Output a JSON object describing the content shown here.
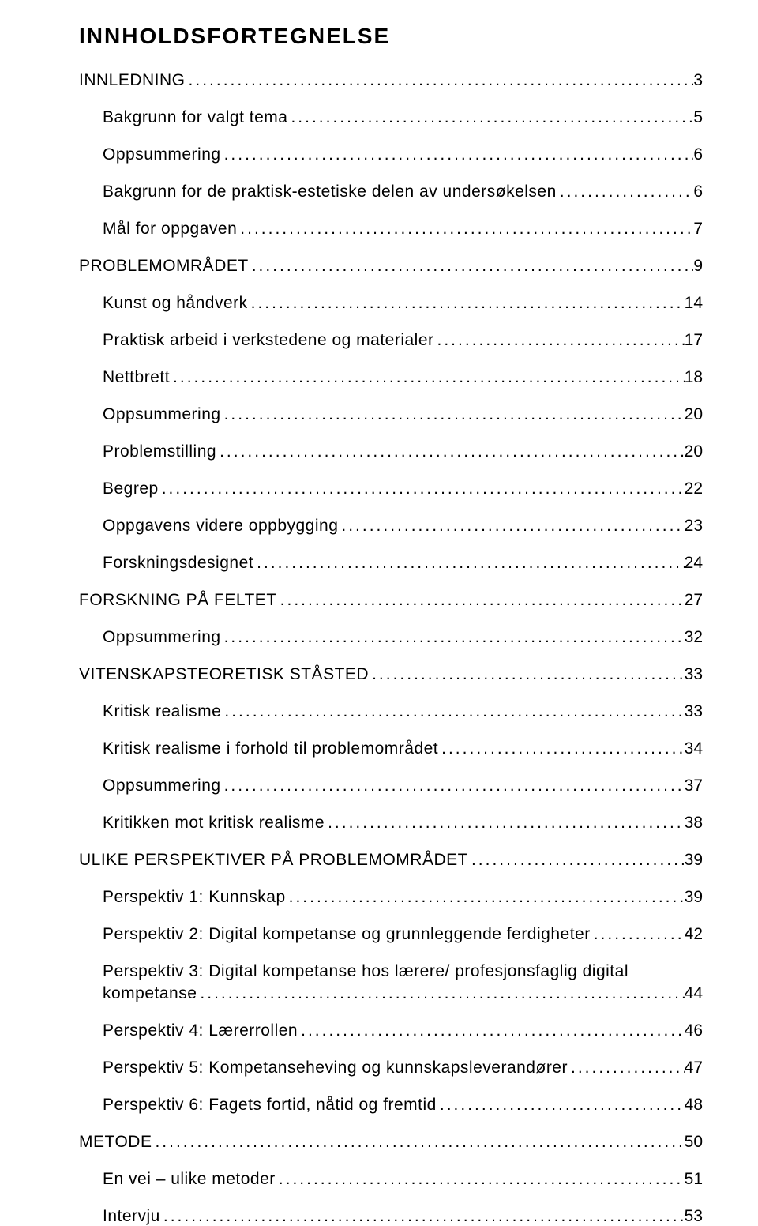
{
  "title": "INNHOLDSFORTEGNELSE",
  "title_fontsize": 28,
  "body_fontsize": 21,
  "background_color": "#ffffff",
  "text_color": "#000000",
  "entries": [
    {
      "level": 1,
      "label": "INNLEDNING",
      "page": "3"
    },
    {
      "level": 2,
      "label": "Bakgrunn for valgt tema",
      "page": "5"
    },
    {
      "level": 2,
      "label": "Oppsummering",
      "page": "6"
    },
    {
      "level": 2,
      "label": "Bakgrunn for de praktisk-estetiske delen av undersøkelsen",
      "page": "6"
    },
    {
      "level": 2,
      "label": "Mål for oppgaven",
      "page": "7"
    },
    {
      "level": 1,
      "label": "PROBLEMOMRÅDET",
      "page": "9"
    },
    {
      "level": 2,
      "label": "Kunst og håndverk",
      "page": "14"
    },
    {
      "level": 2,
      "label": "Praktisk arbeid i verkstedene og materialer",
      "page": "17"
    },
    {
      "level": 2,
      "label": "Nettbrett",
      "page": "18"
    },
    {
      "level": 2,
      "label": "Oppsummering",
      "page": "20"
    },
    {
      "level": 2,
      "label": "Problemstilling",
      "page": "20"
    },
    {
      "level": 2,
      "label": "Begrep",
      "page": "22"
    },
    {
      "level": 2,
      "label": "Oppgavens videre oppbygging",
      "page": "23"
    },
    {
      "level": 2,
      "label": "Forskningsdesignet",
      "page": "24"
    },
    {
      "level": 1,
      "label": "FORSKNING PÅ FELTET",
      "page": "27"
    },
    {
      "level": 2,
      "label": "Oppsummering",
      "page": "32"
    },
    {
      "level": 1,
      "label": "VITENSKAPSTEORETISK STÅSTED",
      "page": "33"
    },
    {
      "level": 2,
      "label": "Kritisk realisme",
      "page": "33"
    },
    {
      "level": 2,
      "label": "Kritisk realisme i forhold til problemområdet",
      "page": "34"
    },
    {
      "level": 2,
      "label": "Oppsummering",
      "page": "37"
    },
    {
      "level": 2,
      "label": "Kritikken mot kritisk realisme",
      "page": "38"
    },
    {
      "level": 1,
      "label": "ULIKE PERSPEKTIVER PÅ PROBLEMOMRÅDET",
      "page": "39"
    },
    {
      "level": 2,
      "label": "Perspektiv 1: Kunnskap",
      "page": "39"
    },
    {
      "level": 2,
      "label": "Perspektiv 2: Digital kompetanse og grunnleggende ferdigheter",
      "page": "42"
    },
    {
      "level": 2,
      "label": "Perspektiv 3: Digital kompetanse hos lærere/ profesjonsfaglig digital",
      "label2": "kompetanse",
      "page": "44"
    },
    {
      "level": 2,
      "label": "Perspektiv 4: Lærerrollen",
      "page": "46"
    },
    {
      "level": 2,
      "label": "Perspektiv 5: Kompetanseheving og kunnskapsleverandører",
      "page": "47"
    },
    {
      "level": 2,
      "label": "Perspektiv 6: Fagets fortid, nåtid og fremtid",
      "page": "48"
    },
    {
      "level": 1,
      "label": "METODE",
      "page": "50"
    },
    {
      "level": 2,
      "label": "En vei – ulike metoder",
      "page": "51"
    },
    {
      "level": 2,
      "label": "Intervju",
      "page": "53"
    }
  ]
}
